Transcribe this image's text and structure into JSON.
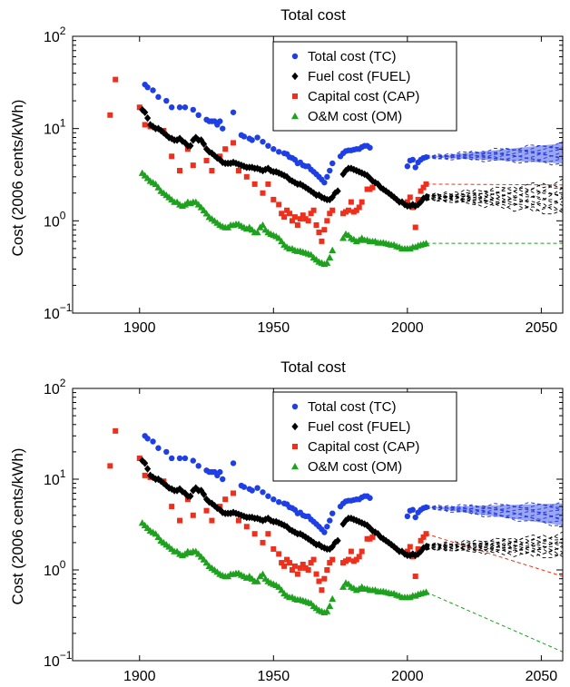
{
  "chart_data": [
    {
      "type": "scatter",
      "title": "Total cost",
      "ylabel": "Cost (2006 cents/kWh)",
      "xlabel": "",
      "xlim": [
        1875,
        2058
      ],
      "ylim_exp": [
        -1,
        2
      ],
      "yscale": "log",
      "x_ticks": [
        "1900",
        "1950",
        "2000",
        "2050"
      ],
      "y_tick_exponents": [
        "2",
        "1",
        "0",
        "−1"
      ],
      "legend_position": "top-center",
      "legend": [
        "Total cost (TC)",
        "Fuel cost (FUEL)",
        "Capital cost (CAP)",
        "O&M cost (OM)"
      ],
      "forecast": {
        "start": 2007,
        "end": 2058,
        "tc_band": {
          "lower_end": 4.2,
          "upper_end": 6.9
        },
        "fuel_band": {
          "lower_end": 1.2,
          "upper_end": 2.6
        },
        "cap_end": 2.45,
        "om_end": 0.57
      }
    },
    {
      "type": "scatter",
      "title": "Total cost",
      "ylabel": "Cost (2006 cents/kWh)",
      "xlabel": "",
      "xlim": [
        1875,
        2058
      ],
      "ylim_exp": [
        -1,
        2
      ],
      "yscale": "log",
      "x_ticks": [
        "1900",
        "1950",
        "2000",
        "2050"
      ],
      "y_tick_exponents": [
        "2",
        "1",
        "0",
        "−1"
      ],
      "legend_position": "top-center",
      "legend": [
        "Total cost (TC)",
        "Fuel cost (FUEL)",
        "Capital cost (CAP)",
        "O&M cost (OM)"
      ],
      "forecast": {
        "start": 2007,
        "end": 2058,
        "tc_band": {
          "lower_end": 3.1,
          "upper_end": 5.4
        },
        "fuel_band": {
          "lower_end": 1.4,
          "upper_end": 2.4
        },
        "cap_end": 0.85,
        "om_end": 0.125
      }
    }
  ],
  "series": {
    "tc": {
      "name": "Total cost (TC)",
      "color": "#1f3fe6",
      "marker": "circle",
      "points": [
        [
          1902,
          30
        ],
        [
          1903,
          28
        ],
        [
          1905,
          26
        ],
        [
          1907,
          22
        ],
        [
          1910,
          20
        ],
        [
          1912,
          17
        ],
        [
          1915,
          17
        ],
        [
          1917,
          17
        ],
        [
          1920,
          16
        ],
        [
          1922,
          14
        ],
        [
          1925,
          12.5
        ],
        [
          1926,
          12
        ],
        [
          1927,
          12
        ],
        [
          1928,
          12
        ],
        [
          1929,
          11
        ],
        [
          1930,
          12
        ],
        [
          1931,
          10
        ],
        [
          1935,
          15
        ],
        [
          1938,
          8.5
        ],
        [
          1939,
          8.2
        ],
        [
          1941,
          7.8
        ],
        [
          1942,
          7.5
        ],
        [
          1944,
          8
        ],
        [
          1946,
          7.2
        ],
        [
          1948,
          6.5
        ],
        [
          1950,
          6
        ],
        [
          1952,
          5.6
        ],
        [
          1954,
          5.4
        ],
        [
          1955,
          5.3
        ],
        [
          1956,
          4.9
        ],
        [
          1957,
          4.8
        ],
        [
          1958,
          4.6
        ],
        [
          1959,
          4.2
        ],
        [
          1960,
          4.3
        ],
        [
          1961,
          4
        ],
        [
          1962,
          3.9
        ],
        [
          1963,
          3.9
        ],
        [
          1964,
          3.6
        ],
        [
          1965,
          3.4
        ],
        [
          1966,
          3.2
        ],
        [
          1967,
          3
        ],
        [
          1968,
          2.8
        ],
        [
          1969,
          2.6
        ],
        [
          1970,
          3
        ],
        [
          1971,
          3.5
        ],
        [
          1972,
          4.2
        ],
        [
          1975,
          5
        ],
        [
          1976,
          5.4
        ],
        [
          1977,
          5.7
        ],
        [
          1978,
          5.8
        ],
        [
          1979,
          5.8
        ],
        [
          1980,
          5.9
        ],
        [
          1981,
          6
        ],
        [
          1982,
          6
        ],
        [
          1983,
          6.3
        ],
        [
          1984,
          6.5
        ],
        [
          1985,
          6.5
        ],
        [
          1986,
          6.2
        ],
        [
          2000,
          3.9
        ],
        [
          2001,
          4.5
        ],
        [
          2002,
          4.6
        ],
        [
          2003,
          3.8
        ],
        [
          2004,
          4.3
        ],
        [
          2005,
          4.6
        ],
        [
          2006,
          4.8
        ],
        [
          2007,
          4.9
        ]
      ]
    },
    "fuel": {
      "name": "Fuel cost (FUEL)",
      "color": "#000000",
      "marker": "diamond",
      "points": [
        [
          1901,
          16
        ],
        [
          1902,
          15
        ],
        [
          1903,
          13
        ],
        [
          1904,
          11
        ],
        [
          1905,
          10.5
        ],
        [
          1906,
          10
        ],
        [
          1907,
          10
        ],
        [
          1908,
          9.5
        ],
        [
          1909,
          9
        ],
        [
          1910,
          8.5
        ],
        [
          1911,
          8
        ],
        [
          1912,
          7.8
        ],
        [
          1913,
          7.5
        ],
        [
          1914,
          7.5
        ],
        [
          1915,
          7.8
        ],
        [
          1916,
          7.3
        ],
        [
          1917,
          7
        ],
        [
          1918,
          6.5
        ],
        [
          1919,
          6.5
        ],
        [
          1920,
          7.5
        ],
        [
          1921,
          8
        ],
        [
          1922,
          7.5
        ],
        [
          1923,
          7.5
        ],
        [
          1924,
          6.8
        ],
        [
          1925,
          6
        ],
        [
          1926,
          5.6
        ],
        [
          1927,
          5.4
        ],
        [
          1928,
          5.1
        ],
        [
          1929,
          4.8
        ],
        [
          1930,
          4.6
        ],
        [
          1931,
          4.3
        ],
        [
          1932,
          4.2
        ],
        [
          1933,
          4.2
        ],
        [
          1934,
          4.2
        ],
        [
          1935,
          4.3
        ],
        [
          1936,
          4.2
        ],
        [
          1937,
          4.1
        ],
        [
          1938,
          4
        ],
        [
          1939,
          3.9
        ],
        [
          1940,
          3.8
        ],
        [
          1941,
          3.8
        ],
        [
          1942,
          3.8
        ],
        [
          1943,
          3.7
        ],
        [
          1944,
          3.7
        ],
        [
          1945,
          3.6
        ],
        [
          1946,
          3.5
        ],
        [
          1947,
          3.6
        ],
        [
          1948,
          3.7
        ],
        [
          1949,
          3.5
        ],
        [
          1950,
          3.4
        ],
        [
          1951,
          3.4
        ],
        [
          1952,
          3.3
        ],
        [
          1953,
          3.2
        ],
        [
          1954,
          3.1
        ],
        [
          1955,
          3
        ],
        [
          1956,
          2.8
        ],
        [
          1957,
          2.7
        ],
        [
          1958,
          2.6
        ],
        [
          1959,
          2.5
        ],
        [
          1960,
          2.5
        ],
        [
          1961,
          2.4
        ],
        [
          1962,
          2.3
        ],
        [
          1963,
          2.2
        ],
        [
          1964,
          2.1
        ],
        [
          1965,
          2
        ],
        [
          1966,
          1.9
        ],
        [
          1967,
          1.9
        ],
        [
          1968,
          1.8
        ],
        [
          1969,
          1.75
        ],
        [
          1970,
          1.7
        ],
        [
          1971,
          1.7
        ],
        [
          1972,
          1.8
        ],
        [
          1973,
          2
        ],
        [
          1974,
          2.1
        ],
        [
          1976,
          3.2
        ],
        [
          1977,
          3.5
        ],
        [
          1978,
          3.7
        ],
        [
          1979,
          3.7
        ],
        [
          1980,
          3.6
        ],
        [
          1981,
          3.5
        ],
        [
          1982,
          3.4
        ],
        [
          1983,
          3.3
        ],
        [
          1984,
          3.2
        ],
        [
          1985,
          3.1
        ],
        [
          1986,
          2.9
        ],
        [
          1987,
          2.7
        ],
        [
          1988,
          2.6
        ],
        [
          1989,
          2.5
        ],
        [
          1990,
          2.3
        ],
        [
          1991,
          2.2
        ],
        [
          1992,
          2.1
        ],
        [
          1993,
          2
        ],
        [
          1994,
          1.9
        ],
        [
          1995,
          1.8
        ],
        [
          1996,
          1.7
        ],
        [
          1997,
          1.6
        ],
        [
          1998,
          1.6
        ],
        [
          1999,
          1.5
        ],
        [
          2000,
          1.45
        ],
        [
          2001,
          1.45
        ],
        [
          2002,
          1.5
        ],
        [
          2003,
          1.45
        ],
        [
          2004,
          1.5
        ],
        [
          2005,
          1.6
        ],
        [
          2006,
          1.75
        ],
        [
          2007,
          1.8
        ]
      ]
    },
    "cap": {
      "name": "Capital cost (CAP)",
      "color": "#ee2f1c",
      "marker": "square",
      "points": [
        [
          1889,
          14
        ],
        [
          1891,
          34
        ],
        [
          1900,
          17
        ],
        [
          1902,
          11
        ],
        [
          1904,
          10.5
        ],
        [
          1909,
          9.5
        ],
        [
          1912,
          5
        ],
        [
          1915,
          3.5
        ],
        [
          1918,
          6
        ],
        [
          1920,
          4
        ],
        [
          1925,
          4.5
        ],
        [
          1927,
          3.5
        ],
        [
          1930,
          5
        ],
        [
          1932,
          6
        ],
        [
          1935,
          7
        ],
        [
          1937,
          3.5
        ],
        [
          1940,
          3
        ],
        [
          1943,
          2.5
        ],
        [
          1946,
          2
        ],
        [
          1948,
          2.5
        ],
        [
          1950,
          1.7
        ],
        [
          1952,
          1.5
        ],
        [
          1953,
          1.2
        ],
        [
          1954,
          1.1
        ],
        [
          1955,
          1.3
        ],
        [
          1956,
          1.2
        ],
        [
          1957,
          1
        ],
        [
          1958,
          1.1
        ],
        [
          1959,
          0.9
        ],
        [
          1960,
          1.05
        ],
        [
          1961,
          1.15
        ],
        [
          1962,
          1.05
        ],
        [
          1963,
          1
        ],
        [
          1964,
          1.2
        ],
        [
          1965,
          1.3
        ],
        [
          1966,
          0.9
        ],
        [
          1967,
          0.75
        ],
        [
          1968,
          0.6
        ],
        [
          1969,
          0.8
        ],
        [
          1970,
          1
        ],
        [
          1971,
          1.2
        ],
        [
          1972,
          1.3
        ],
        [
          1976,
          1.2
        ],
        [
          1977,
          1.25
        ],
        [
          1978,
          1.3
        ],
        [
          1979,
          1.6
        ],
        [
          1980,
          1.25
        ],
        [
          1981,
          1.3
        ],
        [
          1982,
          1.4
        ],
        [
          1983,
          1.6
        ],
        [
          1985,
          2.2
        ],
        [
          1986,
          2.2
        ],
        [
          1987,
          2.3
        ],
        [
          2000,
          1.6
        ],
        [
          2001,
          1.8
        ],
        [
          2002,
          1.4
        ],
        [
          2003,
          0.85
        ],
        [
          2004,
          1.7
        ],
        [
          2005,
          2.1
        ],
        [
          2006,
          2.3
        ],
        [
          2007,
          2.5
        ]
      ]
    },
    "om": {
      "name": "O&M cost (OM)",
      "color": "#1ea11e",
      "marker": "triangle",
      "points": [
        [
          1901,
          3.3
        ],
        [
          1902,
          3.1
        ],
        [
          1903,
          2.9
        ],
        [
          1904,
          2.7
        ],
        [
          1905,
          2.6
        ],
        [
          1906,
          2.5
        ],
        [
          1907,
          2.3
        ],
        [
          1908,
          2.1
        ],
        [
          1909,
          2
        ],
        [
          1910,
          1.9
        ],
        [
          1911,
          1.8
        ],
        [
          1912,
          1.7
        ],
        [
          1913,
          1.6
        ],
        [
          1914,
          1.6
        ],
        [
          1915,
          1.5
        ],
        [
          1916,
          1.45
        ],
        [
          1917,
          1.5
        ],
        [
          1918,
          1.6
        ],
        [
          1919,
          1.55
        ],
        [
          1920,
          1.6
        ],
        [
          1921,
          1.6
        ],
        [
          1922,
          1.5
        ],
        [
          1923,
          1.4
        ],
        [
          1924,
          1.3
        ],
        [
          1925,
          1.2
        ],
        [
          1926,
          1.1
        ],
        [
          1927,
          1.05
        ],
        [
          1928,
          1
        ],
        [
          1929,
          0.95
        ],
        [
          1930,
          0.9
        ],
        [
          1931,
          0.87
        ],
        [
          1932,
          0.85
        ],
        [
          1933,
          0.85
        ],
        [
          1934,
          0.9
        ],
        [
          1935,
          0.9
        ],
        [
          1936,
          0.92
        ],
        [
          1937,
          0.92
        ],
        [
          1938,
          0.88
        ],
        [
          1939,
          0.85
        ],
        [
          1940,
          0.82
        ],
        [
          1941,
          0.85
        ],
        [
          1942,
          0.8
        ],
        [
          1943,
          0.75
        ],
        [
          1944,
          0.75
        ],
        [
          1945,
          0.85
        ],
        [
          1946,
          0.9
        ],
        [
          1947,
          0.8
        ],
        [
          1948,
          0.75
        ],
        [
          1949,
          0.72
        ],
        [
          1950,
          0.7
        ],
        [
          1951,
          0.68
        ],
        [
          1952,
          0.65
        ],
        [
          1953,
          0.6
        ],
        [
          1954,
          0.55
        ],
        [
          1955,
          0.52
        ],
        [
          1956,
          0.5
        ],
        [
          1957,
          0.5
        ],
        [
          1958,
          0.48
        ],
        [
          1959,
          0.47
        ],
        [
          1960,
          0.47
        ],
        [
          1961,
          0.46
        ],
        [
          1962,
          0.45
        ],
        [
          1963,
          0.44
        ],
        [
          1964,
          0.43
        ],
        [
          1965,
          0.4
        ],
        [
          1966,
          0.38
        ],
        [
          1967,
          0.36
        ],
        [
          1968,
          0.35
        ],
        [
          1969,
          0.34
        ],
        [
          1970,
          0.35
        ],
        [
          1971,
          0.4
        ],
        [
          1972,
          0.48
        ],
        [
          1976,
          0.65
        ],
        [
          1977,
          0.72
        ],
        [
          1978,
          0.7
        ],
        [
          1979,
          0.65
        ],
        [
          1980,
          0.63
        ],
        [
          1981,
          0.6
        ],
        [
          1982,
          0.62
        ],
        [
          1983,
          0.65
        ],
        [
          1984,
          0.62
        ],
        [
          1985,
          0.62
        ],
        [
          1986,
          0.6
        ],
        [
          1987,
          0.6
        ],
        [
          1988,
          0.6
        ],
        [
          1989,
          0.58
        ],
        [
          1990,
          0.58
        ],
        [
          1991,
          0.58
        ],
        [
          1992,
          0.57
        ],
        [
          1993,
          0.56
        ],
        [
          1994,
          0.55
        ],
        [
          1995,
          0.55
        ],
        [
          1996,
          0.53
        ],
        [
          1997,
          0.52
        ],
        [
          1998,
          0.5
        ],
        [
          1999,
          0.5
        ],
        [
          2000,
          0.5
        ],
        [
          2001,
          0.5
        ],
        [
          2002,
          0.52
        ],
        [
          2003,
          0.52
        ],
        [
          2004,
          0.54
        ],
        [
          2005,
          0.55
        ],
        [
          2006,
          0.56
        ],
        [
          2007,
          0.57
        ]
      ]
    }
  }
}
